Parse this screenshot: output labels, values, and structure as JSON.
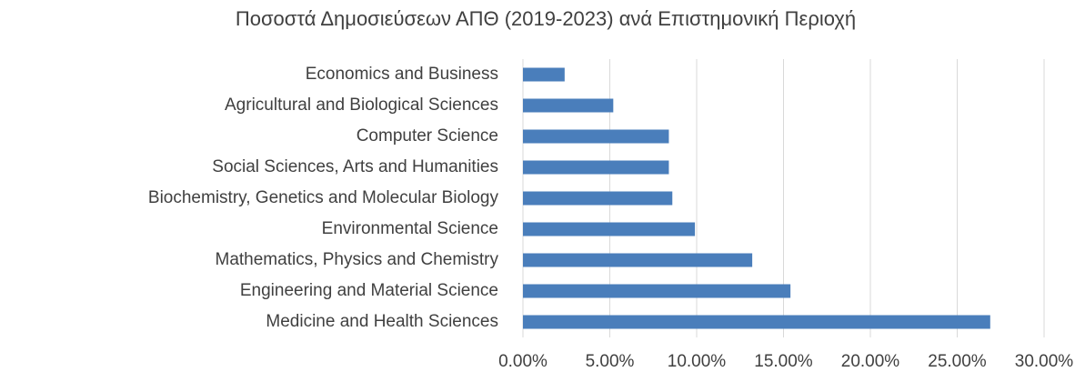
{
  "chart_data": {
    "type": "barh",
    "title": "Ποσοστά Δημοσιεύσεων ΑΠΘ (2019-2023) ανά Επιστημονική Περιοχή",
    "categories": [
      "Economics and Business",
      "Agricultural and Biological Sciences",
      "Computer Science",
      "Social Sciences, Arts and Humanities",
      "Biochemistry, Genetics and Molecular Biology",
      "Environmental Science",
      "Mathematics, Physics and Chemistry",
      "Engineering and Material Science",
      "Medicine and Health Sciences"
    ],
    "values": [
      2.4,
      5.2,
      8.4,
      8.4,
      8.6,
      9.9,
      13.2,
      15.4,
      26.9
    ],
    "color": "#4a7ebb",
    "xlim": [
      0,
      30
    ],
    "xticks": [
      {
        "value": 0,
        "label": "0.00%"
      },
      {
        "value": 5,
        "label": "5.00%"
      },
      {
        "value": 10,
        "label": "10.00%"
      },
      {
        "value": 15,
        "label": "15.00%"
      },
      {
        "value": 20,
        "label": "20.00%"
      },
      {
        "value": 25,
        "label": "25.00%"
      },
      {
        "value": 30,
        "label": "30.00%"
      }
    ],
    "grid": true
  }
}
